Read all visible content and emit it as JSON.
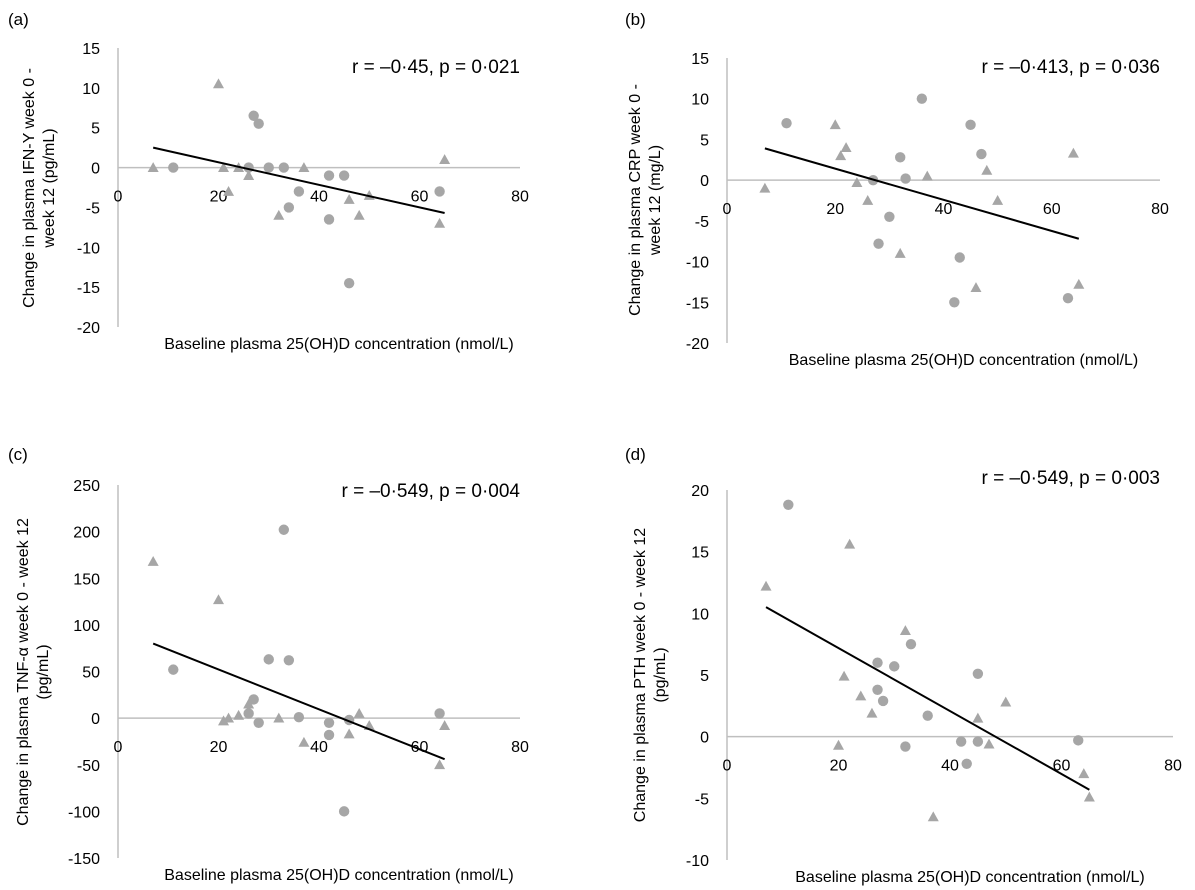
{
  "figure": {
    "style": {
      "marker_color": "#a6a6a6",
      "axis_color": "#bfbfbf",
      "trend_color": "#000000"
    }
  },
  "chart_data": [
    {
      "panel": "(a)",
      "type": "scatter",
      "annotation": "r = –0·45, p = 0·021",
      "xlabel": "Baseline plasma 25(OH)D concentration (nmol/L)",
      "ylabel_lines": [
        "Change in plasma IFN-Y week 0 -",
        "week 12 (pg/mL)"
      ],
      "xlim": [
        0,
        80
      ],
      "ylim": [
        -20,
        15
      ],
      "x_ticks": [
        "0",
        "20",
        "40",
        "60",
        "80"
      ],
      "y_ticks": [
        "15",
        "10",
        "5",
        "0",
        "-5",
        "-10",
        "-15",
        "-20"
      ],
      "circles": [
        [
          11,
          0
        ],
        [
          26,
          0
        ],
        [
          27,
          6.5
        ],
        [
          28,
          5.5
        ],
        [
          30,
          0
        ],
        [
          33,
          0
        ],
        [
          36,
          -3
        ],
        [
          42,
          -1
        ],
        [
          42,
          -6.5
        ],
        [
          45,
          -1
        ],
        [
          46,
          -14.5
        ],
        [
          34,
          -5
        ],
        [
          64,
          -3
        ]
      ],
      "triangles": [
        [
          7,
          0
        ],
        [
          20,
          10.5
        ],
        [
          21,
          0
        ],
        [
          22,
          -3
        ],
        [
          24,
          0
        ],
        [
          26,
          -1
        ],
        [
          32,
          -6
        ],
        [
          37,
          0
        ],
        [
          46,
          -4
        ],
        [
          48,
          -6
        ],
        [
          50,
          -3.5
        ],
        [
          64,
          -7
        ],
        [
          65,
          1
        ]
      ],
      "trendline": [
        [
          7,
          2.5
        ],
        [
          65,
          -5.7
        ]
      ]
    },
    {
      "panel": "(b)",
      "type": "scatter",
      "annotation": "r = –0·413, p = 0·036",
      "xlabel": "Baseline plasma 25(OH)D concentration (nmol/L)",
      "ylabel_lines": [
        "Change in plasma CRP week 0 -",
        "week 12 (mg/L)"
      ],
      "xlim": [
        0,
        80
      ],
      "ylim": [
        -20,
        15
      ],
      "x_ticks": [
        "0",
        "20",
        "40",
        "60",
        "80"
      ],
      "y_ticks": [
        "15",
        "10",
        "5",
        "0",
        "-5",
        "-10",
        "-15",
        "-20"
      ],
      "circles": [
        [
          11,
          7
        ],
        [
          27,
          0
        ],
        [
          28,
          -7.8
        ],
        [
          30,
          -4.5
        ],
        [
          32,
          2.8
        ],
        [
          33,
          0.2
        ],
        [
          36,
          10
        ],
        [
          42,
          -15
        ],
        [
          43,
          -9.5
        ],
        [
          45,
          6.8
        ],
        [
          47,
          3.2
        ],
        [
          63,
          -14.5
        ]
      ],
      "triangles": [
        [
          7,
          -1
        ],
        [
          20,
          6.8
        ],
        [
          21,
          3
        ],
        [
          22,
          4
        ],
        [
          24,
          -0.3
        ],
        [
          26,
          -2.5
        ],
        [
          32,
          -9
        ],
        [
          37,
          0.5
        ],
        [
          46,
          -13.2
        ],
        [
          48,
          1.2
        ],
        [
          50,
          -2.5
        ],
        [
          64,
          3.3
        ],
        [
          65,
          -12.8
        ]
      ],
      "trendline": [
        [
          7,
          3.9
        ],
        [
          65,
          -7.2
        ]
      ]
    },
    {
      "panel": "(c)",
      "type": "scatter",
      "annotation": "r = –0·549, p = 0·004",
      "xlabel": "Baseline plasma 25(OH)D concentration (nmol/L)",
      "ylabel_lines": [
        "Change in plasma TNF-α week 0 - week 12",
        "(pg/mL)"
      ],
      "xlim": [
        0,
        80
      ],
      "ylim": [
        -150,
        250
      ],
      "x_ticks": [
        "0",
        "20",
        "40",
        "60",
        "80"
      ],
      "y_ticks": [
        "250",
        "200",
        "150",
        "100",
        "50",
        "0",
        "-50",
        "-100",
        "-150"
      ],
      "circles": [
        [
          11,
          52
        ],
        [
          26,
          5
        ],
        [
          27,
          20
        ],
        [
          28,
          -5
        ],
        [
          30,
          63
        ],
        [
          33,
          202
        ],
        [
          34,
          62
        ],
        [
          36,
          1
        ],
        [
          42,
          -18
        ],
        [
          42,
          -5
        ],
        [
          45,
          -100
        ],
        [
          46,
          -2
        ],
        [
          64,
          5
        ]
      ],
      "triangles": [
        [
          7,
          168
        ],
        [
          20,
          127
        ],
        [
          21,
          -3
        ],
        [
          22,
          0
        ],
        [
          24,
          3
        ],
        [
          26,
          15
        ],
        [
          32,
          0
        ],
        [
          37,
          -26
        ],
        [
          46,
          -17
        ],
        [
          48,
          5
        ],
        [
          50,
          -8
        ],
        [
          64,
          -50
        ],
        [
          65,
          -8
        ]
      ],
      "trendline": [
        [
          7,
          80
        ],
        [
          65,
          -44
        ]
      ]
    },
    {
      "panel": "(d)",
      "type": "scatter",
      "annotation": "r = –0·549, p = 0·003",
      "xlabel": "Baseline plasma 25(OH)D concentration (nmol/L)",
      "ylabel_lines": [
        "Change in plasma PTH week 0 - week 12",
        "(pg/mL)"
      ],
      "xlim": [
        0,
        80
      ],
      "ylim": [
        -10,
        20
      ],
      "x_ticks": [
        "0",
        "20",
        "40",
        "60",
        "80"
      ],
      "y_ticks": [
        "20",
        "15",
        "10",
        "5",
        "0",
        "-5",
        "-10"
      ],
      "circles": [
        [
          11,
          18.8
        ],
        [
          27,
          6
        ],
        [
          27,
          3.8
        ],
        [
          28,
          2.9
        ],
        [
          30,
          5.7
        ],
        [
          32,
          -0.8
        ],
        [
          33,
          7.5
        ],
        [
          36,
          1.7
        ],
        [
          42,
          -0.4
        ],
        [
          43,
          -2.2
        ],
        [
          45,
          -0.4
        ],
        [
          45,
          5.1
        ],
        [
          63,
          -0.3
        ]
      ],
      "triangles": [
        [
          7,
          12.2
        ],
        [
          20,
          -0.7
        ],
        [
          21,
          4.9
        ],
        [
          22,
          15.6
        ],
        [
          24,
          3.3
        ],
        [
          26,
          1.9
        ],
        [
          32,
          8.6
        ],
        [
          37,
          -6.5
        ],
        [
          45,
          1.5
        ],
        [
          47,
          -0.6
        ],
        [
          50,
          2.8
        ],
        [
          64,
          -3
        ],
        [
          65,
          -4.9
        ]
      ],
      "trendline": [
        [
          7,
          10.5
        ],
        [
          65,
          -4.3
        ]
      ]
    }
  ]
}
